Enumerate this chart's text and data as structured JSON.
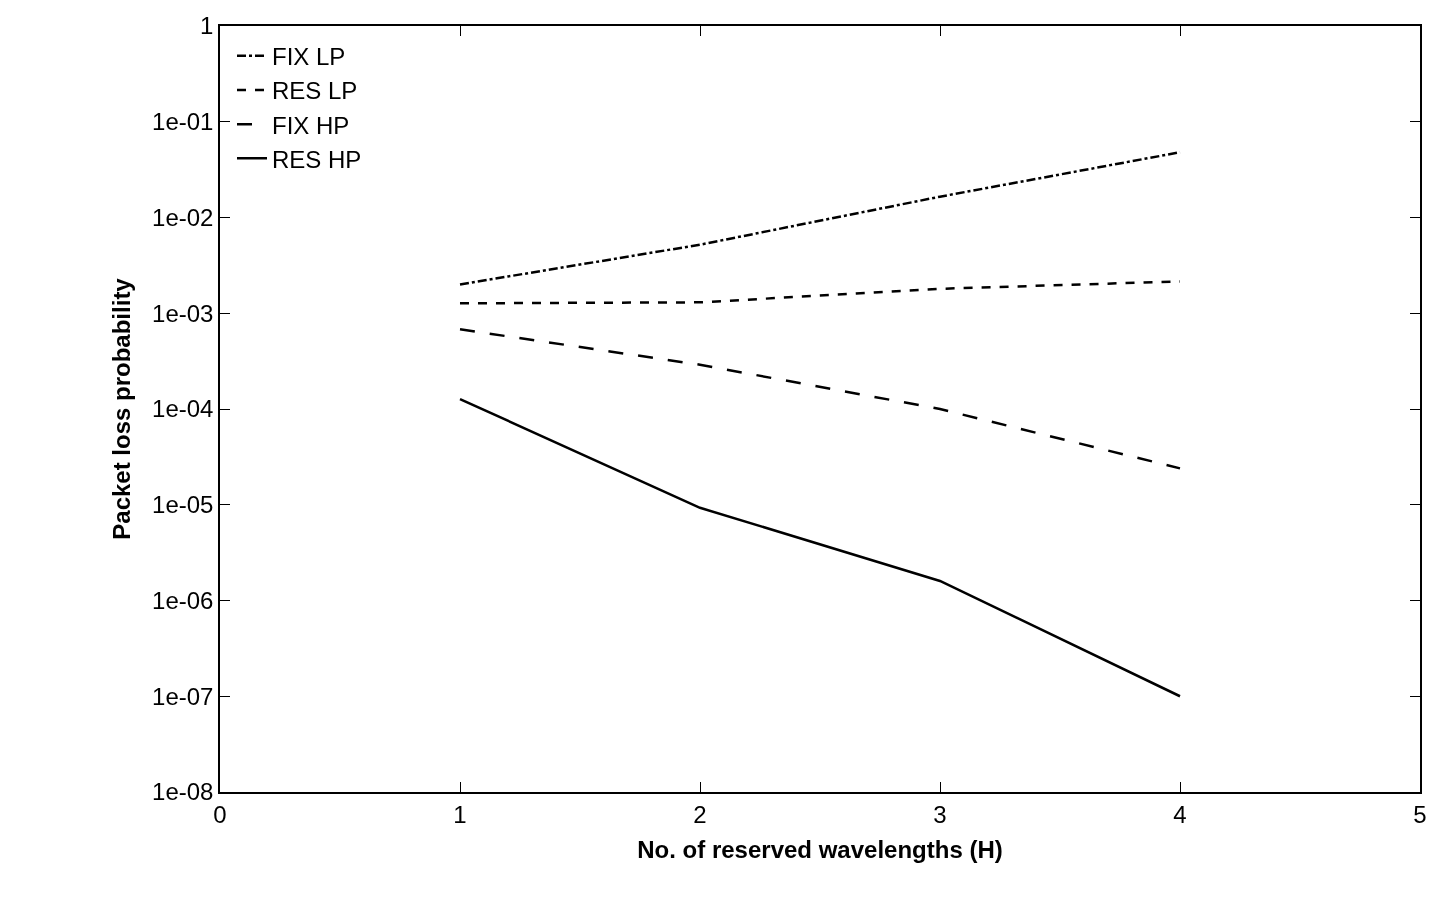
{
  "chart_data": {
    "type": "line",
    "xlabel": "No. of reserved wavelengths (H)",
    "ylabel": "Packet loss probability",
    "x": [
      1,
      2,
      3,
      4
    ],
    "series": [
      {
        "name": "FIX LP",
        "color": "#000000",
        "line_style": "dashdot",
        "values": [
          0.002,
          0.0052,
          0.0165,
          0.048
        ]
      },
      {
        "name": "RES LP",
        "color": "#000000",
        "line_style": "dashed",
        "values": [
          0.00127,
          0.0013,
          0.0018,
          0.00215
        ]
      },
      {
        "name": "FIX HP",
        "color": "#000000",
        "line_style": "longdash",
        "values": [
          0.00068,
          0.00029,
          0.0001,
          2.4e-05
        ]
      },
      {
        "name": "RES HP",
        "color": "#000000",
        "line_style": "solid",
        "values": [
          0.000127,
          9.3e-06,
          1.6e-06,
          1e-07
        ]
      }
    ],
    "xlim": [
      0,
      5
    ],
    "xticks": [
      0,
      1,
      2,
      3,
      4,
      5
    ],
    "ylim": [
      1e-08,
      1
    ],
    "log": "y",
    "yticks": [
      {
        "value": 1e-08,
        "label": "1e-08"
      },
      {
        "value": 1e-07,
        "label": "1e-07"
      },
      {
        "value": 1e-06,
        "label": "1e-06"
      },
      {
        "value": 1e-05,
        "label": "1e-05"
      },
      {
        "value": 0.0001,
        "label": "1e-04"
      },
      {
        "value": 0.001,
        "label": "1e-03"
      },
      {
        "value": 0.01,
        "label": "1e-02"
      },
      {
        "value": 0.1,
        "label": "1e-01"
      },
      {
        "value": 1,
        "label": "1"
      }
    ],
    "legend": "top left",
    "marker": "none"
  }
}
